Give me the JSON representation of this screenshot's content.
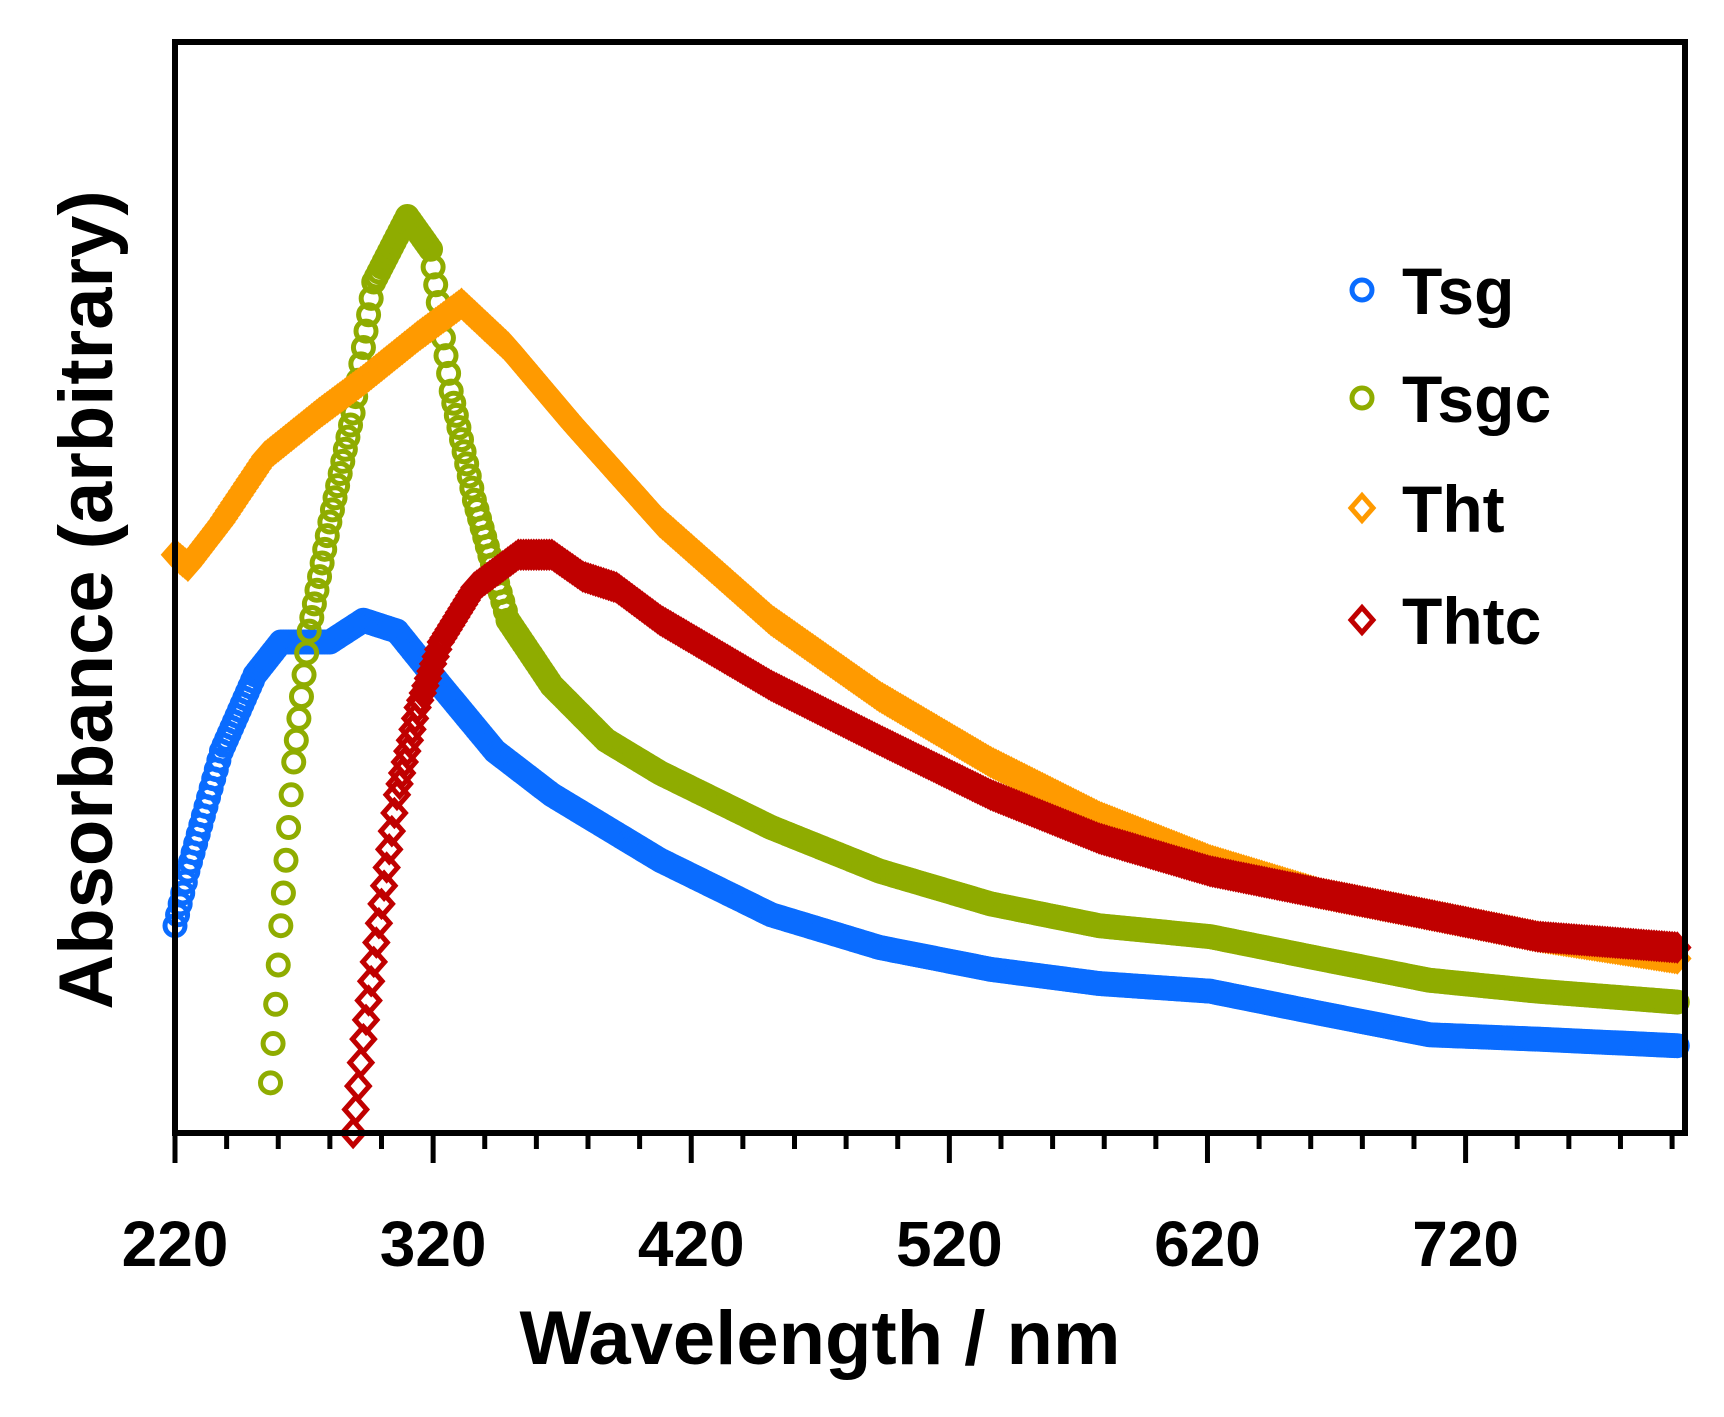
{
  "chart_data": {
    "type": "scatter",
    "title": "",
    "xlabel": "Wavelength / nm",
    "ylabel": "Absorbance (arbitrary)",
    "xlim": [
      220,
      805
    ],
    "ylim": [
      0,
      1
    ],
    "x_ticks": [
      220,
      320,
      420,
      520,
      620,
      720
    ],
    "x_tick_labels": [
      "220",
      "320",
      "420",
      "520",
      "620",
      "720"
    ],
    "x_minor_step": 20,
    "grid": false,
    "legend_position": "top-right",
    "series": [
      {
        "name": "Tsg",
        "marker": "circle",
        "color": "#0a6cff",
        "x": [
          220,
          225,
          238,
          251,
          261,
          280,
          293,
          306,
          323,
          344,
          366,
          408,
          451,
          493,
          536,
          578,
          621,
          663,
          706,
          748,
          802
        ],
        "y": [
          0.19,
          0.24,
          0.35,
          0.42,
          0.45,
          0.45,
          0.47,
          0.46,
          0.41,
          0.35,
          0.31,
          0.25,
          0.2,
          0.17,
          0.15,
          0.137,
          0.13,
          0.11,
          0.09,
          0.086,
          0.08
        ]
      },
      {
        "name": "Tsgc",
        "marker": "circle",
        "color": "#8fac00",
        "x": [
          257,
          261,
          266,
          272,
          280,
          289,
          297,
          310,
          319,
          327,
          336,
          349,
          366,
          387,
          408,
          451,
          493,
          536,
          578,
          621,
          663,
          706,
          748,
          802
        ],
        "y": [
          0.046,
          0.19,
          0.34,
          0.46,
          0.56,
          0.66,
          0.78,
          0.84,
          0.81,
          0.68,
          0.58,
          0.47,
          0.41,
          0.36,
          0.33,
          0.28,
          0.24,
          0.21,
          0.19,
          0.18,
          0.16,
          0.14,
          0.13,
          0.12
        ]
      },
      {
        "name": "Tht",
        "marker": "diamond",
        "color": "#ff9a00",
        "x": [
          220,
          225,
          238,
          255,
          276,
          293,
          314,
          331,
          349,
          374,
          408,
          451,
          493,
          536,
          578,
          621,
          663,
          706,
          748,
          802
        ],
        "y": [
          0.53,
          0.52,
          0.56,
          0.62,
          0.66,
          0.69,
          0.73,
          0.76,
          0.72,
          0.65,
          0.56,
          0.47,
          0.4,
          0.34,
          0.29,
          0.25,
          0.22,
          0.2,
          0.18,
          0.16
        ]
      },
      {
        "name": "Thtc",
        "marker": "diamond",
        "color": "#c00000",
        "x": [
          289,
          293,
          300,
          306,
          314,
          323,
          336,
          353,
          366,
          378,
          391,
          408,
          451,
          493,
          536,
          578,
          621,
          663,
          706,
          748,
          802
        ],
        "y": [
          0.0,
          0.086,
          0.21,
          0.31,
          0.39,
          0.45,
          0.5,
          0.53,
          0.53,
          0.51,
          0.5,
          0.47,
          0.41,
          0.36,
          0.31,
          0.27,
          0.24,
          0.22,
          0.2,
          0.18,
          0.17
        ]
      }
    ]
  }
}
